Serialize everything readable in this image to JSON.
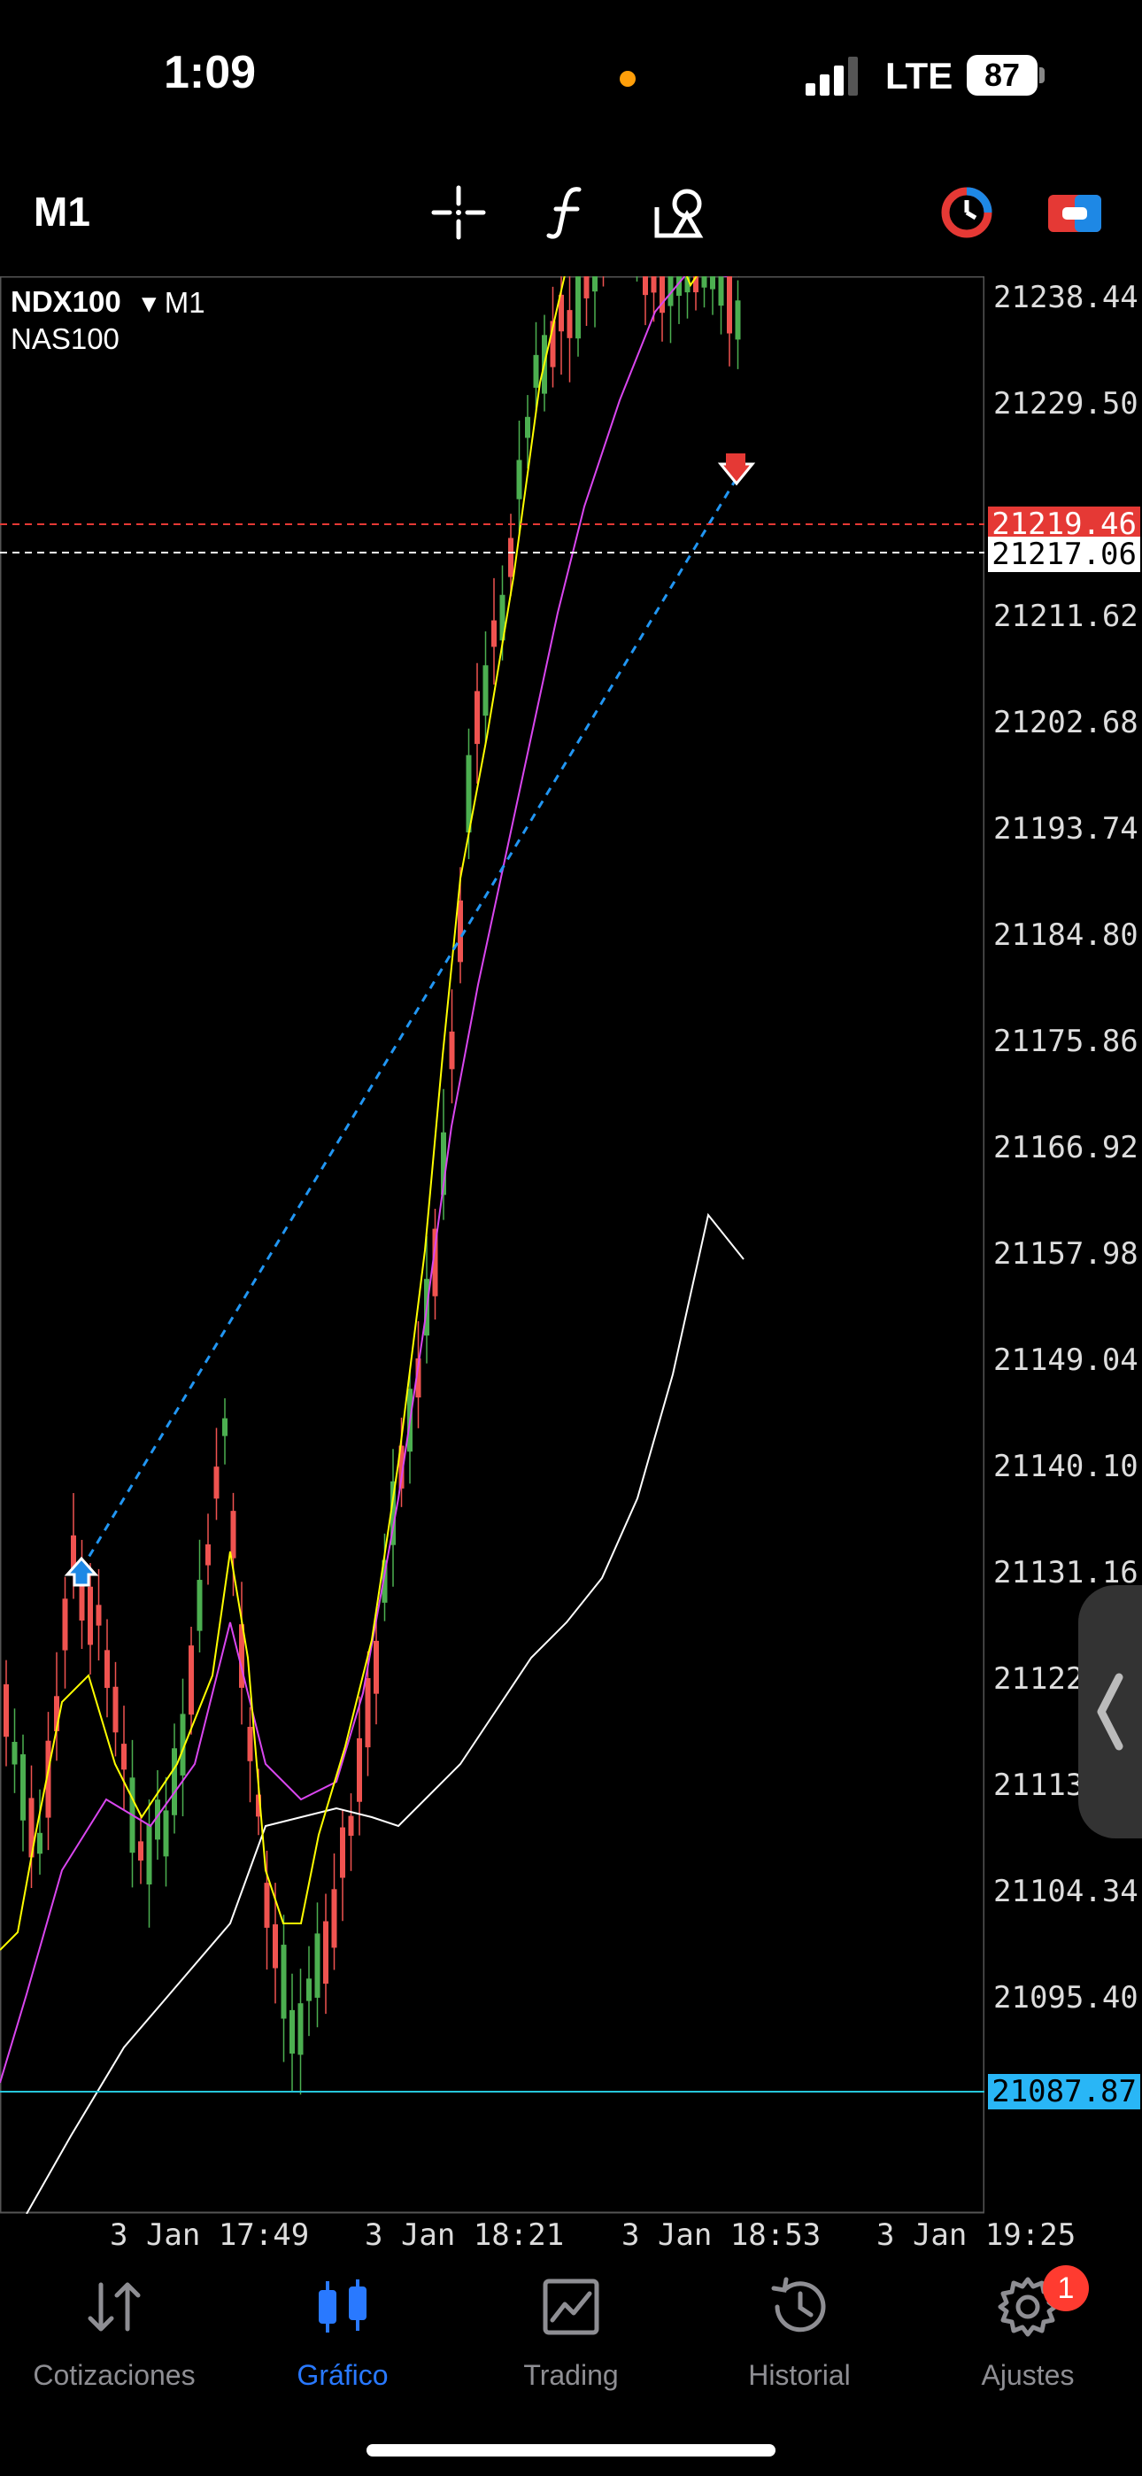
{
  "status_bar": {
    "time": "1:09",
    "network": "LTE",
    "battery": "87"
  },
  "toolbar": {
    "timeframe": "M1",
    "tools": [
      "crosshair-icon",
      "indicators-icon",
      "objects-icon",
      "one-click-trading-icon",
      "chart-settings-icon"
    ]
  },
  "chart": {
    "symbol": "NDX100",
    "symbol_timeframe": "▾ M1",
    "symbol_description": "NAS100",
    "price_axis": [
      "21238.44",
      "21229.50",
      "21211.62",
      "21202.68",
      "21193.74",
      "21184.80",
      "21175.86",
      "21166.92",
      "21157.98",
      "21149.04",
      "21140.10",
      "21131.16",
      "21122",
      "21113",
      "21104.34",
      "21095.40"
    ],
    "bid_price": "21219.46",
    "ask_price": "21217.06",
    "level_price": "21087.87",
    "time_axis": [
      "3 Jan 17:49",
      "3 Jan 18:21",
      "3 Jan 18:53",
      "3 Jan 19:25"
    ],
    "colors": {
      "bull": "#4caf50",
      "bear": "#ef5350",
      "ma_fast": "#ffff00",
      "ma_mid": "#d946ef",
      "ma_slow": "#ffffff",
      "trade_line": "#2196f3"
    }
  },
  "bottom_nav": [
    {
      "label": "Cotizaciones",
      "icon": "quotes-icon"
    },
    {
      "label": "Gráfico",
      "icon": "chart-icon",
      "active": true
    },
    {
      "label": "Trading",
      "icon": "trading-icon"
    },
    {
      "label": "Historial",
      "icon": "history-icon"
    },
    {
      "label": "Ajustes",
      "icon": "settings-icon",
      "badge": "1"
    }
  ]
}
